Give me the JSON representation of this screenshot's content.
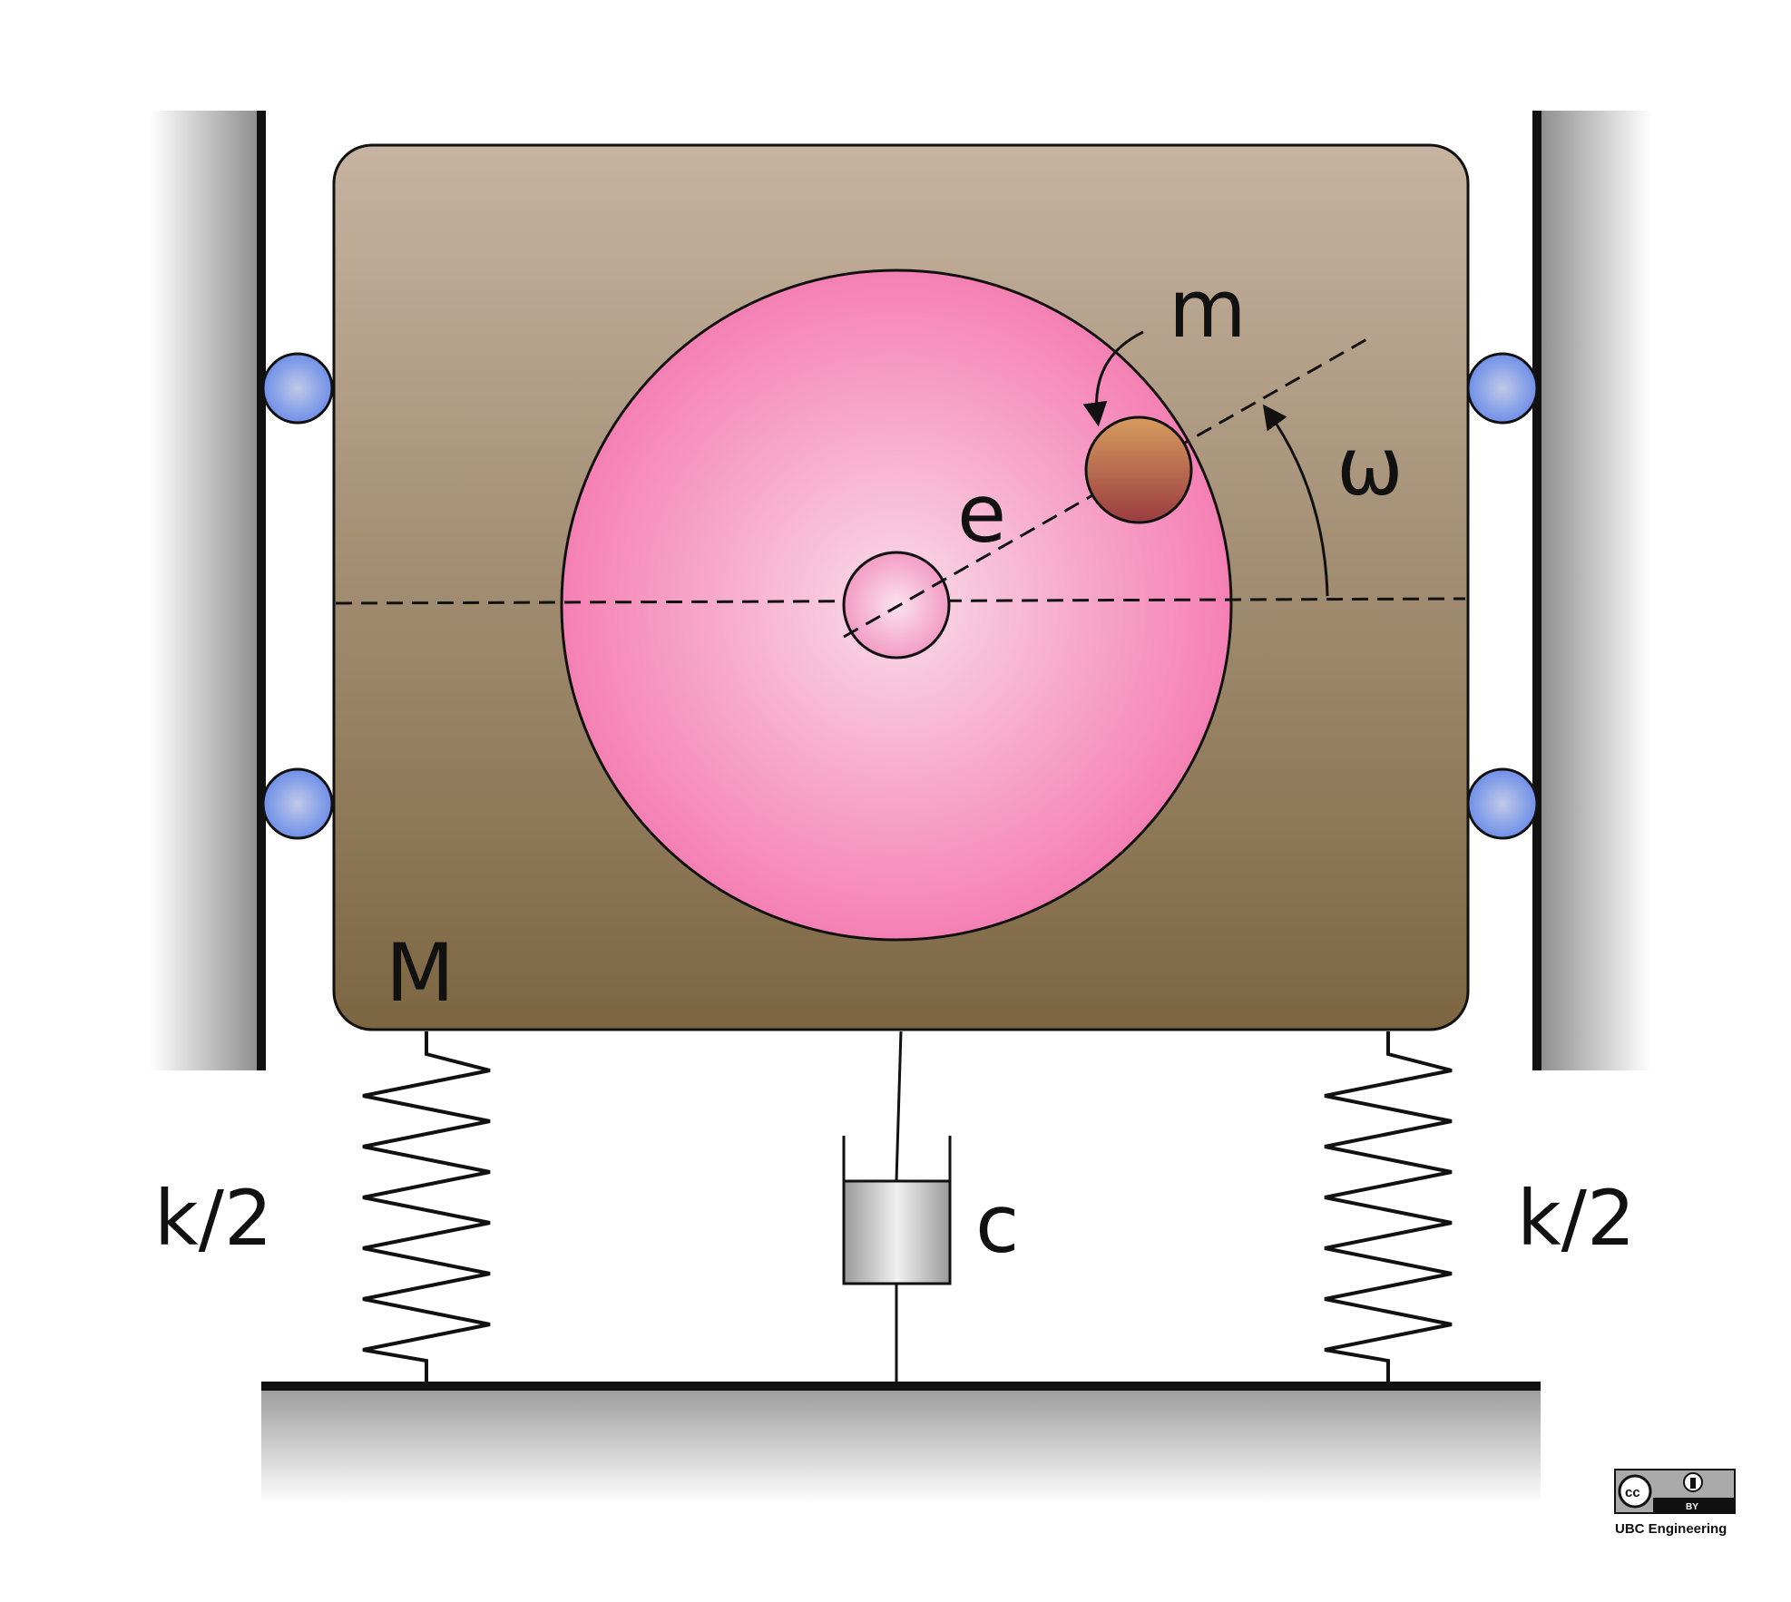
{
  "labels": {
    "mass_body": "M",
    "unbalanced_mass": "m",
    "eccentricity": "e",
    "angular_velocity": "ω",
    "damper": "c",
    "spring_left": "k/2",
    "spring_right": "k/2"
  },
  "credit": {
    "license_text": "cc",
    "license_by": "BY",
    "author": "UBC Engineering"
  },
  "colors": {
    "block_top": "#c6b3a0",
    "block_bottom": "#7c6642",
    "disc_center": "#f9dbe8",
    "disc_edge": "#f580b3",
    "eccentric_mass_top": "#d69c5f",
    "eccentric_mass_bottom": "#9a3c40",
    "roller": "#6f8fe8",
    "damper_body": "#c8c8c8"
  }
}
